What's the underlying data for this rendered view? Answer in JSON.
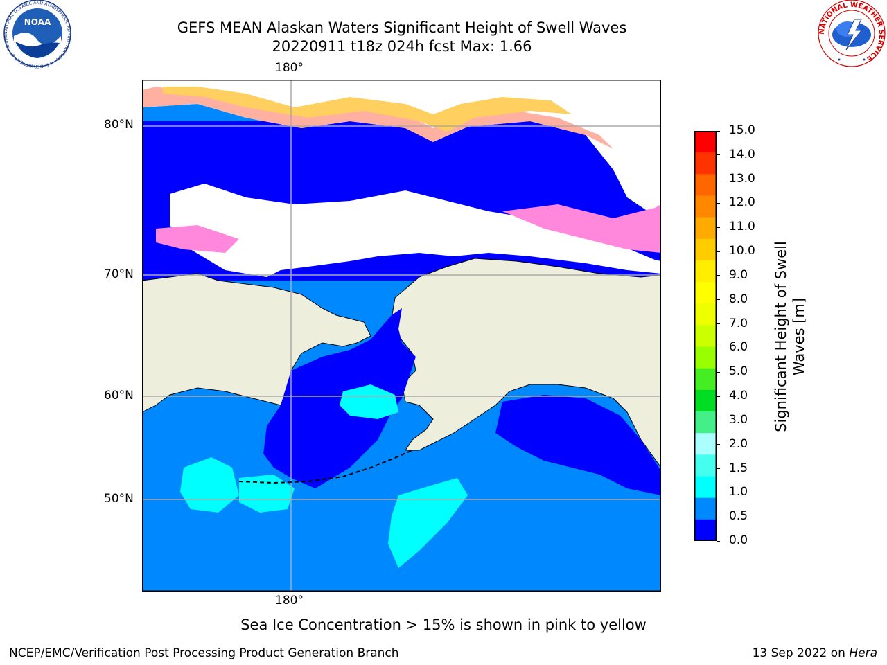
{
  "header": {
    "title_line1": "GEFS MEAN Alaskan Waters Significant Height of Swell Waves",
    "title_line2": "20220911 t18z 024h fcst   Max: 1.66"
  },
  "logos": {
    "noaa_center_text": "NOAA",
    "noaa_ring_text": "NATIONAL OCEANIC AND ATMOSPHERIC ADMINISTRATION · U.S. DEPARTMENT OF COMMERCE",
    "nws_ring_text": "NATIONAL WEATHER SERVICE"
  },
  "map": {
    "lon_label_top": "180°",
    "lon_label_bottom": "180°",
    "lat_labels": [
      "80°N",
      "70°N",
      "60°N",
      "50°N"
    ],
    "land_color": "#eeeedd",
    "ocean_low_color": "#0000ff"
  },
  "colorbar": {
    "label": "Significant Height of Swell Waves [m]",
    "label_line1": "Significant Height of Swell",
    "label_line2": "Waves [m]",
    "ticks": [
      "15.0",
      "14.0",
      "13.0",
      "12.0",
      "11.0",
      "10.0",
      "9.0",
      "8.0",
      "7.0",
      "6.0",
      "5.0",
      "4.0",
      "3.0",
      "2.0",
      "1.5",
      "1.0",
      "0.5",
      "0.0"
    ],
    "colors_top_to_bottom": [
      "#ff0000",
      "#ff3300",
      "#ff6600",
      "#ff8800",
      "#ffaa00",
      "#ffcc00",
      "#ffee00",
      "#ffff00",
      "#eeff00",
      "#ccff00",
      "#99ff00",
      "#44ee22",
      "#00dd22",
      "#44ee88",
      "#aaffff",
      "#44ffee",
      "#00ffff",
      "#0088ff",
      "#0000ff"
    ]
  },
  "footer": {
    "note": "Sea Ice Concentration > 15% is shown in pink to yellow",
    "credit": "NCEP/EMC/Verification Post Processing Product Generation Branch",
    "date": "13 Sep 2022 on",
    "machine": "Hera"
  }
}
